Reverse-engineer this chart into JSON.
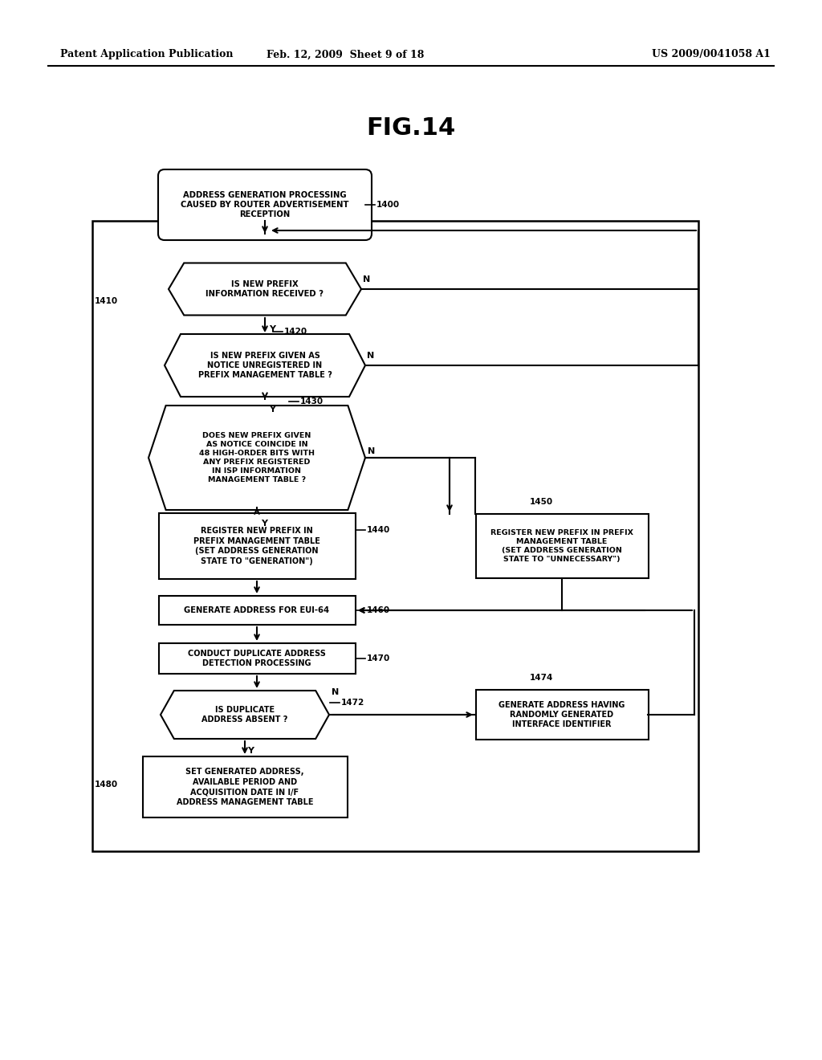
{
  "title": "FIG.14",
  "header_left": "Patent Application Publication",
  "header_mid": "Feb. 12, 2009  Sheet 9 of 18",
  "header_right": "US 2009/0041058 A1",
  "bg_color": "#ffffff",
  "text_color": "#000000",
  "fig_width": 10.24,
  "fig_height": 13.2,
  "dpi": 100
}
